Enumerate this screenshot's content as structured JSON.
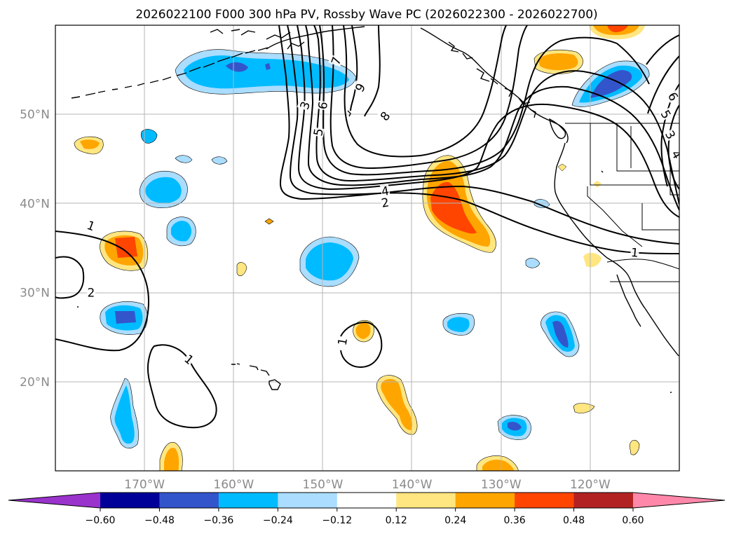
{
  "title": "2026022100 F000 300 hPa PV, Rossby Wave PC (2026022300 - 2026022700)",
  "map_extent": {
    "lon_min": -180,
    "lon_max": -110,
    "lat_min": 10,
    "lat_max": 60
  },
  "latitude_labels": [
    {
      "lat": 50,
      "label": "50°N"
    },
    {
      "lat": 40,
      "label": "40°N"
    },
    {
      "lat": 30,
      "label": "30°N"
    },
    {
      "lat": 20,
      "label": "20°N"
    }
  ],
  "longitude_labels": [
    {
      "lon": -170,
      "label": "170°W"
    },
    {
      "lon": -160,
      "label": "160°W"
    },
    {
      "lon": -150,
      "label": "150°W"
    },
    {
      "lon": -140,
      "label": "140°W"
    },
    {
      "lon": -130,
      "label": "130°W"
    },
    {
      "lon": -120,
      "label": "120°W"
    }
  ],
  "colorbar": {
    "extend": "both",
    "boundaries": [
      -0.6,
      -0.48,
      -0.36,
      -0.24,
      -0.12,
      0.12,
      0.24,
      0.36,
      0.48,
      0.6
    ],
    "tick_labels": [
      "−0.60",
      "−0.48",
      "−0.36",
      "−0.24",
      "−0.12",
      "0.12",
      "0.24",
      "0.36",
      "0.48",
      "0.60"
    ],
    "colors": [
      "#9933cc",
      "#000099",
      "#3355cc",
      "#00bbff",
      "#aaddff",
      "#ffffff",
      "#ffe680",
      "#ffa500",
      "#ff4500",
      "#b22222",
      "#ff88aa"
    ]
  },
  "pv_contour_labels": [
    {
      "text": "1",
      "lon": -176,
      "lat": 37.5,
      "rot": 20
    },
    {
      "text": "2",
      "lon": -176,
      "lat": 30,
      "rot": 0
    },
    {
      "text": "1",
      "lon": -165,
      "lat": 22.5,
      "rot": 40
    },
    {
      "text": "1",
      "lon": -147.8,
      "lat": 24.5,
      "rot": -80
    },
    {
      "text": "2",
      "lon": -143,
      "lat": 40.1,
      "rot": -10
    },
    {
      "text": "4",
      "lon": -143,
      "lat": 41.4,
      "rot": -10
    },
    {
      "text": "1",
      "lon": -115,
      "lat": 34.5,
      "rot": 5
    },
    {
      "text": "3",
      "lon": -152,
      "lat": 51,
      "rot": -70
    },
    {
      "text": "5",
      "lon": -150.5,
      "lat": 48,
      "rot": -80
    },
    {
      "text": "6",
      "lon": -150,
      "lat": 51,
      "rot": -80
    },
    {
      "text": "7",
      "lon": -148.5,
      "lat": 56,
      "rot": -70
    },
    {
      "text": "9",
      "lon": -145.8,
      "lat": 53,
      "rot": -60
    },
    {
      "text": "8",
      "lon": -143,
      "lat": 49.8,
      "rot": -50
    },
    {
      "text": "5",
      "lon": -111.5,
      "lat": 50,
      "rot": 60
    },
    {
      "text": "3",
      "lon": -111,
      "lat": 47.7,
      "rot": 60
    },
    {
      "text": "6",
      "lon": -110.7,
      "lat": 52,
      "rot": 60
    },
    {
      "text": "4",
      "lon": -110.3,
      "lat": 45.5,
      "rot": 60
    }
  ]
}
